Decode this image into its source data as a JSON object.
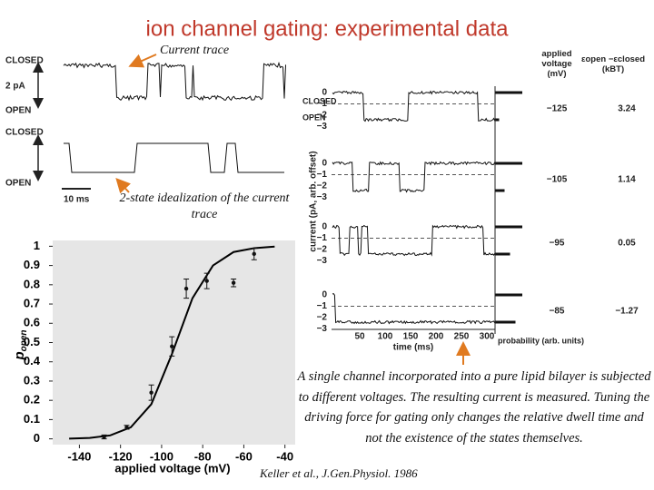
{
  "title": "ion channel gating: experimental data",
  "annotations": {
    "current_trace": "Current trace",
    "idealization": "2-state idealization of the current trace",
    "caption": "A single channel incorporated into a pure lipid bilayer is subjected to different voltages. The resulting current is measured. Tuning the driving force for gating only changes the relative dwell time and not the existence of the states themselves.",
    "citation": "Keller et al., J.Gen.Physiol. 1986"
  },
  "left_traces": {
    "closed": "CLOSED",
    "open": "OPEN",
    "scale_current": "2 pA",
    "scale_time": "10 ms"
  },
  "right_figure": {
    "closed": "CLOSED",
    "open": "OPEN",
    "yticks": [
      "0",
      "−1",
      "−2",
      "−3"
    ],
    "xticks": [
      "50",
      "100",
      "150",
      "200",
      "250",
      "300"
    ],
    "ylabel": "current (pA, arb. offset)",
    "xlabel": "time (ms)",
    "prob_label": "probability (arb. units)",
    "table": {
      "header": [
        "applied voltage (mV)",
        "εopen −εclosed (kBT)"
      ],
      "rows": [
        [
          "−125",
          "3.24"
        ],
        [
          "−105",
          "1.14"
        ],
        [
          "−95",
          "0.05"
        ],
        [
          "−85",
          "−1.27"
        ]
      ]
    }
  },
  "chart_data": {
    "type": "scatter",
    "xlabel": "applied voltage (mV)",
    "ylabel": "p",
    "ylabel_sub": "open",
    "x": [
      -128,
      -117,
      -105,
      -95,
      -88,
      -78,
      -65,
      -55
    ],
    "values": [
      0.01,
      0.06,
      0.24,
      0.48,
      0.78,
      0.82,
      0.81,
      0.96
    ],
    "errors": [
      0.01,
      0.01,
      0.04,
      0.05,
      0.05,
      0.04,
      0.02,
      0.03
    ],
    "color": "#111111",
    "fit": {
      "x": [
        -145,
        -135,
        -125,
        -115,
        -105,
        -95,
        -85,
        -75,
        -65,
        -55,
        -45
      ],
      "values": [
        0.0015,
        0.005,
        0.018,
        0.06,
        0.18,
        0.44,
        0.73,
        0.9,
        0.97,
        0.99,
        0.998
      ],
      "color": "#000000"
    },
    "xlim": [
      -153,
      -35
    ],
    "ylim": [
      -0.03,
      1.03
    ],
    "xticks": [
      -140,
      -120,
      -100,
      -80,
      -60,
      -40
    ],
    "yticks": [
      0,
      0.1,
      0.2,
      0.3,
      0.4,
      0.5,
      0.6,
      0.7,
      0.8,
      0.9,
      1
    ]
  }
}
